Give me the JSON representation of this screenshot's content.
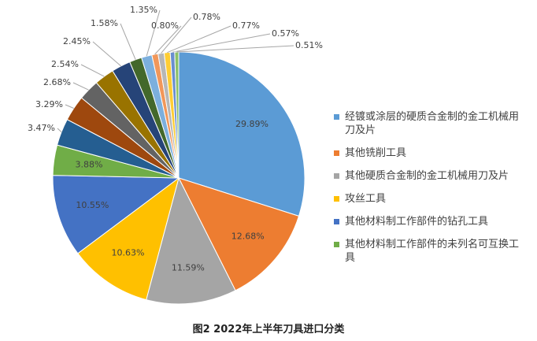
{
  "chart_data": {
    "type": "pie",
    "title": "图2 2022年上半年刀具进口分类",
    "categories": [
      "经镀或涂层的硬质合金制的金工机械用刀及片",
      "其他铣削工具",
      "其他硬质合金制的金工机械用刀及片",
      "攻丝工具",
      "其他材料制工作部件的钻孔工具",
      "其他材料制工作部件的未列名可互换工具",
      null,
      null,
      null,
      null,
      null,
      null,
      null,
      null,
      null,
      null,
      null,
      null
    ],
    "values": [
      29.89,
      12.68,
      11.59,
      10.63,
      10.55,
      3.88,
      3.47,
      3.29,
      2.68,
      2.54,
      2.45,
      1.58,
      1.35,
      0.8,
      0.78,
      0.77,
      0.57,
      0.51
    ],
    "value_labels": [
      "29.89%",
      "12.68%",
      "11.59%",
      "10.63%",
      "10.55%",
      "3.88%",
      "3.47%",
      "3.29%",
      "2.68%",
      "2.54%",
      "2.45%",
      "1.58%",
      "1.35%",
      "0.80%",
      "0.78%",
      "0.77%",
      "0.57%",
      "0.51%"
    ],
    "colors": [
      "#5b9bd5",
      "#ed7d31",
      "#a5a5a5",
      "#ffc000",
      "#4472c4",
      "#70ad47",
      "#255e91",
      "#9e480e",
      "#636363",
      "#997300",
      "#264478",
      "#43682b",
      "#7cafdd",
      "#f1975a",
      "#b7b7b7",
      "#ffcd33",
      "#698ed0",
      "#8cc168"
    ],
    "legend": "right"
  }
}
